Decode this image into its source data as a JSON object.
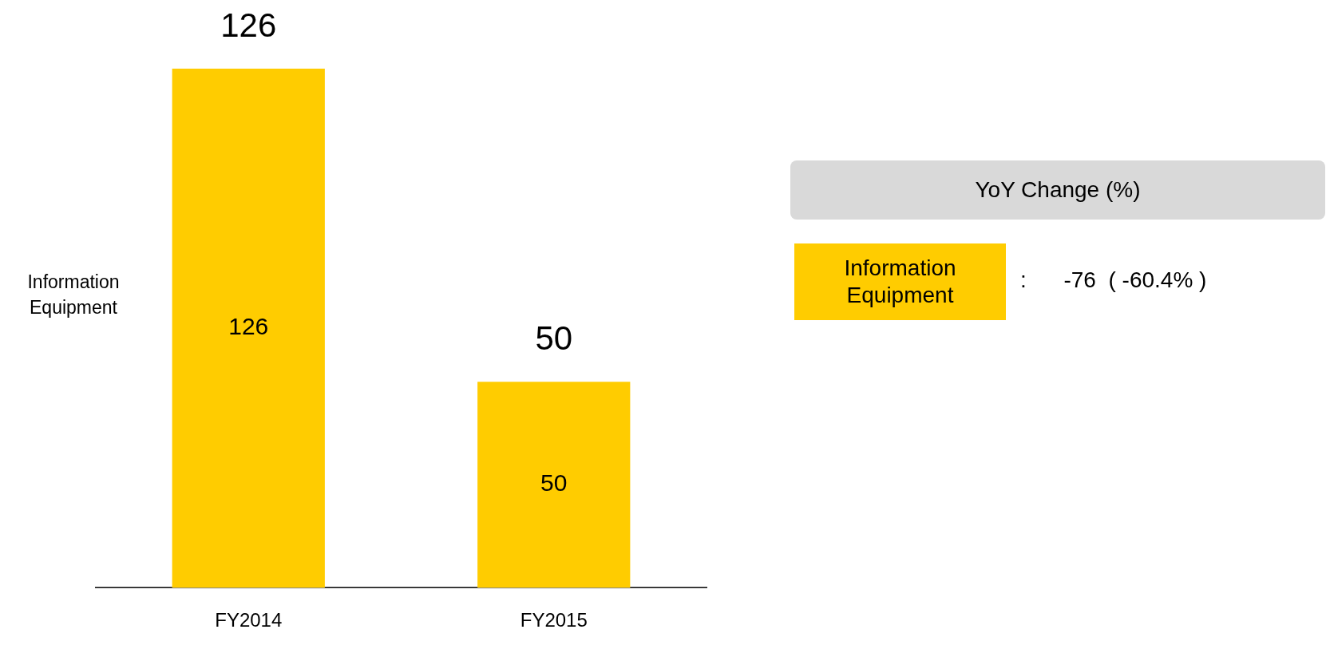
{
  "chart_data": {
    "type": "bar",
    "categories": [
      "FY2014",
      "FY2015"
    ],
    "series": [
      {
        "name": "Information Equipment",
        "color": "#ffcc00",
        "values": [
          126,
          50
        ]
      }
    ],
    "data_labels": true,
    "totals": [
      "126",
      "50"
    ],
    "legend": "left",
    "grid": false,
    "annotations": [
      "YoY Change (%)",
      ":      -76  ( -60.4% )"
    ]
  }
}
